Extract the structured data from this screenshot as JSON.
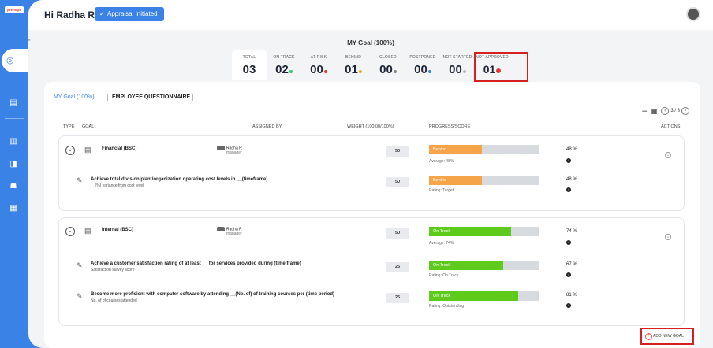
{
  "sidebar": {
    "logo": "peerlogix"
  },
  "header": {
    "greeting": "Hi Radha R",
    "status_badge": "Appraisal Initiated"
  },
  "goal_summary": {
    "title": "MY Goal (100%)",
    "stats": [
      {
        "label": "TOTAL",
        "value": "03",
        "dot": ""
      },
      {
        "label": "ON TRACK",
        "value": "02",
        "dot": "#2ecc71"
      },
      {
        "label": "AT RISK",
        "value": "00",
        "dot": "#e53935"
      },
      {
        "label": "BEHIND",
        "value": "01",
        "dot": "#f5a623"
      },
      {
        "label": "CLOSED",
        "value": "00",
        "dot": "#888888"
      },
      {
        "label": "POSTPONED",
        "value": "00",
        "dot": "#3b82e6"
      },
      {
        "label": "NOT STARTED",
        "value": "00",
        "dot": "#bbbbbb"
      },
      {
        "label": "NOT APPROVED",
        "value": "01",
        "dot": "#e53935"
      }
    ]
  },
  "tabs": {
    "my_goal": "MY Goal (100%)",
    "questionnaire": "EMPLOYEE QUESTIONNAIRE"
  },
  "pager": {
    "text": "3 / 3"
  },
  "columns": {
    "type": "TYPE",
    "goal": "GOAL",
    "assigned": "ASSIGNED BY",
    "weight": "WEIGHT (100.00/100%)",
    "progress": "PROGRESS/SCORE",
    "actions": "ACTIONS"
  },
  "groups": [
    {
      "parent": {
        "title": "Financial (BSC)",
        "assignee": "Radha R",
        "role": "manager",
        "weight": "50",
        "status": "Behind",
        "progress": 48,
        "color": "#f5a44a",
        "sub": "Average: 48%",
        "pct": "48 %"
      },
      "children": [
        {
          "title": "Achieve total division/plant/organization operating cost levels in __(timeframe)",
          "sub": "__(%) variance from cost level",
          "weight": "50",
          "status": "Behind",
          "progress": 48,
          "color": "#f5a44a",
          "rating": "Rating: Target",
          "pct": "48 %"
        }
      ]
    },
    {
      "parent": {
        "title": "Internal (BSC)",
        "assignee": "Radha R",
        "role": "manager",
        "weight": "50",
        "status": "On Track",
        "progress": 74,
        "color": "#5ecb1c",
        "sub": "Average: 74%",
        "pct": "74 %"
      },
      "children": [
        {
          "title": "Achieve a customer satisfaction rating of at least __ for services provided during (time frame)",
          "sub": "Satisfaction survey score",
          "weight": "25",
          "status": "On Track",
          "progress": 67,
          "color": "#5ecb1c",
          "rating": "Rating: On Track",
          "pct": "67 %"
        },
        {
          "title": "Become more proficient with computer software by attending __(No. of) of training courses per (time period)",
          "sub": "No. of of courses attended",
          "weight": "25",
          "status": "On Track",
          "progress": 81,
          "color": "#5ecb1c",
          "rating": "Rating: Outstanding",
          "pct": "81 %"
        }
      ]
    }
  ],
  "add_goal": "ADD NEW GOAL"
}
